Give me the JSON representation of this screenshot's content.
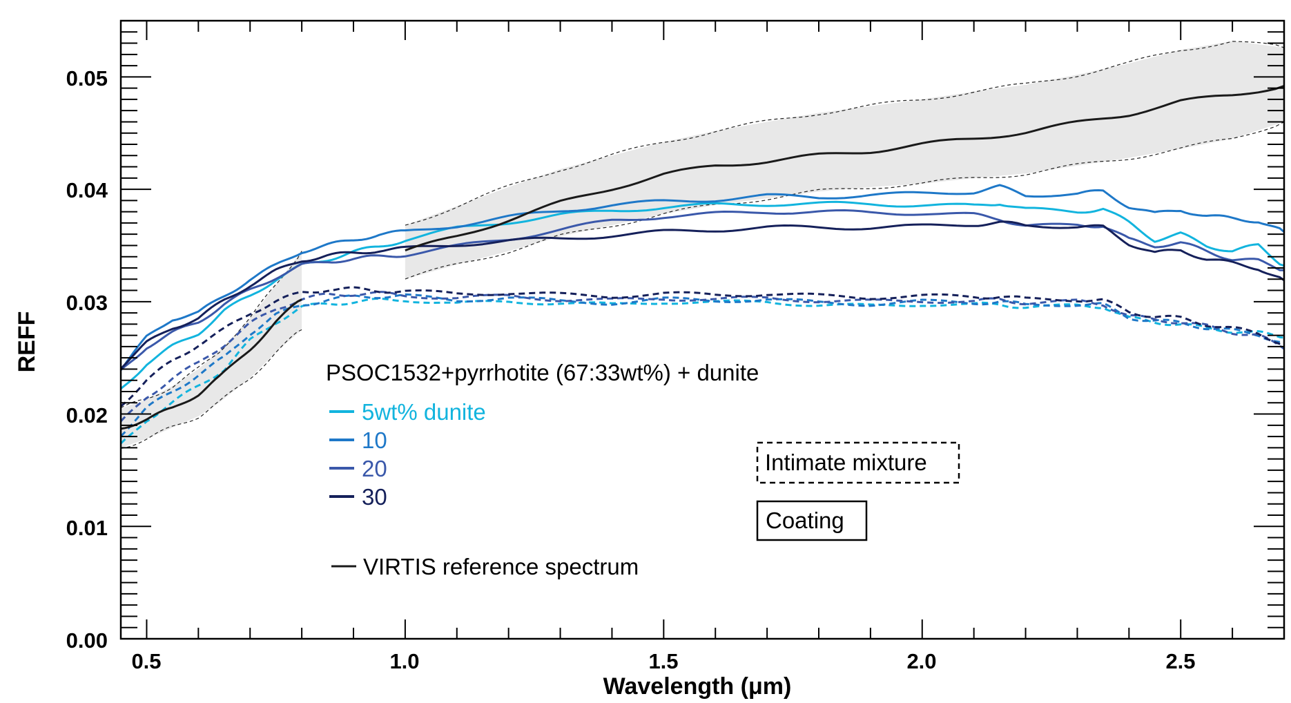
{
  "chart_data": {
    "type": "line",
    "title": "",
    "xlabel": "Wavelength (μm)",
    "ylabel": "REFF",
    "xlim": [
      0.45,
      2.7
    ],
    "ylim": [
      0.0,
      0.055
    ],
    "x_ticks": [
      "0.5",
      "1.0",
      "1.5",
      "2.0",
      "2.5"
    ],
    "y_ticks": [
      "0.00",
      "0.01",
      "0.02",
      "0.03",
      "0.04",
      "0.05"
    ],
    "x_tick_values": [
      0.5,
      1.0,
      1.5,
      2.0,
      2.5
    ],
    "y_tick_values": [
      0.0,
      0.01,
      0.02,
      0.03,
      0.04,
      0.05
    ],
    "legend": {
      "title": "PSOC1532+pyrrhotite (67:33wt%) + dunite",
      "entries": [
        {
          "label": "5wt% dunite",
          "color": "#12b4de"
        },
        {
          "label": "10",
          "color": "#1e78c8"
        },
        {
          "label": "20",
          "color": "#3a58aa"
        },
        {
          "label": "30",
          "color": "#15205a"
        }
      ],
      "reference_label": "VIRTIS reference spectrum"
    },
    "style_keys": {
      "dashed": "Intimate mixture",
      "solid": "Coating"
    },
    "reference": {
      "name": "VIRTIS reference spectrum",
      "color": "#1a1a1a",
      "segments": [
        {
          "x": [
            0.45,
            0.5,
            0.55,
            0.6,
            0.64,
            0.7,
            0.75,
            0.8
          ],
          "y": [
            0.0188,
            0.0195,
            0.0205,
            0.0218,
            0.0232,
            0.0258,
            0.0282,
            0.0302
          ],
          "upper": [
            0.0205,
            0.0213,
            0.0225,
            0.024,
            0.0256,
            0.0285,
            0.0315,
            0.0345
          ],
          "lower": [
            0.017,
            0.0178,
            0.0188,
            0.0198,
            0.021,
            0.0232,
            0.0255,
            0.0275
          ]
        },
        {
          "x": [
            1.0,
            1.1,
            1.2,
            1.3,
            1.4,
            1.5,
            1.6,
            1.7,
            1.8,
            1.9,
            2.0,
            2.1,
            2.2,
            2.3,
            2.4,
            2.5,
            2.6,
            2.7
          ],
          "y": [
            0.0345,
            0.0358,
            0.0373,
            0.0388,
            0.0401,
            0.0413,
            0.0421,
            0.0425,
            0.043,
            0.0434,
            0.044,
            0.0445,
            0.0451,
            0.0459,
            0.0467,
            0.0478,
            0.0484,
            0.0492
          ],
          "upper": [
            0.0368,
            0.0385,
            0.0402,
            0.0418,
            0.043,
            0.0442,
            0.0452,
            0.046,
            0.0468,
            0.0474,
            0.048,
            0.0487,
            0.0493,
            0.0502,
            0.0512,
            0.0524,
            0.0532,
            0.0526
          ],
          "lower": [
            0.032,
            0.0333,
            0.0345,
            0.0358,
            0.0368,
            0.0378,
            0.0386,
            0.0392,
            0.0398,
            0.0402,
            0.0405,
            0.041,
            0.0414,
            0.0421,
            0.0428,
            0.0436,
            0.0445,
            0.046
          ]
        }
      ]
    },
    "x": [
      0.45,
      0.5,
      0.55,
      0.6,
      0.65,
      0.7,
      0.75,
      0.8,
      0.85,
      0.9,
      0.95,
      1.0,
      1.1,
      1.2,
      1.3,
      1.4,
      1.5,
      1.6,
      1.7,
      1.8,
      1.9,
      2.0,
      2.1,
      2.15,
      2.2,
      2.3,
      2.35,
      2.4,
      2.45,
      2.5,
      2.55,
      2.6,
      2.65,
      2.7
    ],
    "series": [
      {
        "name": "5wt% dunite coating",
        "color": "#12b4de",
        "dashed": false,
        "values": [
          0.0222,
          0.0245,
          0.026,
          0.0272,
          0.0292,
          0.0305,
          0.032,
          0.0332,
          0.0338,
          0.0344,
          0.0349,
          0.0355,
          0.0365,
          0.0371,
          0.0377,
          0.0381,
          0.0384,
          0.0386,
          0.0387,
          0.0387,
          0.0387,
          0.0386,
          0.0385,
          0.0388,
          0.0382,
          0.038,
          0.0383,
          0.037,
          0.0355,
          0.036,
          0.035,
          0.0345,
          0.035,
          0.0332
        ]
      },
      {
        "name": "10 coating",
        "color": "#1e78c8",
        "dashed": false,
        "values": [
          0.024,
          0.0268,
          0.0285,
          0.029,
          0.0305,
          0.032,
          0.0332,
          0.0345,
          0.035,
          0.0355,
          0.036,
          0.0362,
          0.0368,
          0.0375,
          0.0381,
          0.0386,
          0.0389,
          0.0391,
          0.0394,
          0.0393,
          0.0395,
          0.0396,
          0.0398,
          0.0402,
          0.0395,
          0.0396,
          0.0398,
          0.0385,
          0.0378,
          0.0382,
          0.0376,
          0.0374,
          0.0372,
          0.0362
        ]
      },
      {
        "name": "20 coating",
        "color": "#3a58aa",
        "dashed": false,
        "values": [
          0.0238,
          0.026,
          0.0272,
          0.0282,
          0.0298,
          0.031,
          0.0322,
          0.0332,
          0.0336,
          0.0338,
          0.034,
          0.0342,
          0.0349,
          0.0356,
          0.0364,
          0.0372,
          0.0376,
          0.0378,
          0.038,
          0.038,
          0.0379,
          0.0379,
          0.0377,
          0.0374,
          0.0367,
          0.0368,
          0.0368,
          0.0355,
          0.035,
          0.0352,
          0.0345,
          0.0338,
          0.0336,
          0.0328
        ]
      },
      {
        "name": "30 coating",
        "color": "#15205a",
        "dashed": false,
        "values": [
          0.0242,
          0.0263,
          0.0277,
          0.0285,
          0.0301,
          0.0315,
          0.0327,
          0.0337,
          0.0341,
          0.0343,
          0.0346,
          0.0347,
          0.0351,
          0.0354,
          0.0356,
          0.0359,
          0.0362,
          0.0364,
          0.0366,
          0.0366,
          0.0366,
          0.0367,
          0.0369,
          0.037,
          0.0368,
          0.0367,
          0.0366,
          0.0352,
          0.0343,
          0.0346,
          0.0338,
          0.0334,
          0.033,
          0.0319
        ]
      },
      {
        "name": "5wt% dunite intimate",
        "color": "#12b4de",
        "dashed": true,
        "values": [
          0.0172,
          0.0195,
          0.021,
          0.0225,
          0.024,
          0.0265,
          0.0282,
          0.0295,
          0.0298,
          0.03,
          0.0301,
          0.0302,
          0.0298,
          0.03,
          0.0299,
          0.0297,
          0.03,
          0.0299,
          0.03,
          0.0297,
          0.0296,
          0.0298,
          0.0297,
          0.0298,
          0.0295,
          0.0296,
          0.0296,
          0.0285,
          0.0282,
          0.028,
          0.0276,
          0.0274,
          0.0272,
          0.0268
        ]
      },
      {
        "name": "10 intimate",
        "color": "#1e78c8",
        "dashed": true,
        "values": [
          0.0182,
          0.0205,
          0.022,
          0.0235,
          0.025,
          0.0272,
          0.0288,
          0.0297,
          0.0302,
          0.0304,
          0.0305,
          0.0305,
          0.0301,
          0.0304,
          0.03,
          0.0299,
          0.0302,
          0.0301,
          0.0302,
          0.0299,
          0.0298,
          0.03,
          0.0299,
          0.03,
          0.0297,
          0.0298,
          0.0297,
          0.0286,
          0.0283,
          0.0281,
          0.0277,
          0.0274,
          0.0271,
          0.0263
        ]
      },
      {
        "name": "20 intimate",
        "color": "#3a58aa",
        "dashed": true,
        "values": [
          0.0192,
          0.0215,
          0.0232,
          0.0245,
          0.0262,
          0.028,
          0.0294,
          0.0302,
          0.0306,
          0.0307,
          0.0307,
          0.0306,
          0.0303,
          0.0305,
          0.0302,
          0.0301,
          0.0303,
          0.0302,
          0.0303,
          0.0301,
          0.03,
          0.0301,
          0.03,
          0.0302,
          0.0299,
          0.03,
          0.0298,
          0.0287,
          0.0284,
          0.0282,
          0.0278,
          0.0273,
          0.027,
          0.0258
        ]
      },
      {
        "name": "30 intimate",
        "color": "#15205a",
        "dashed": true,
        "values": [
          0.0208,
          0.023,
          0.0247,
          0.0262,
          0.0275,
          0.029,
          0.03,
          0.0308,
          0.0311,
          0.0311,
          0.031,
          0.0309,
          0.0307,
          0.0308,
          0.0306,
          0.0305,
          0.0307,
          0.0306,
          0.0307,
          0.0305,
          0.0304,
          0.0305,
          0.0304,
          0.0305,
          0.0302,
          0.0302,
          0.0301,
          0.0291,
          0.0287,
          0.0285,
          0.028,
          0.0276,
          0.0272,
          0.0262
        ]
      }
    ]
  }
}
